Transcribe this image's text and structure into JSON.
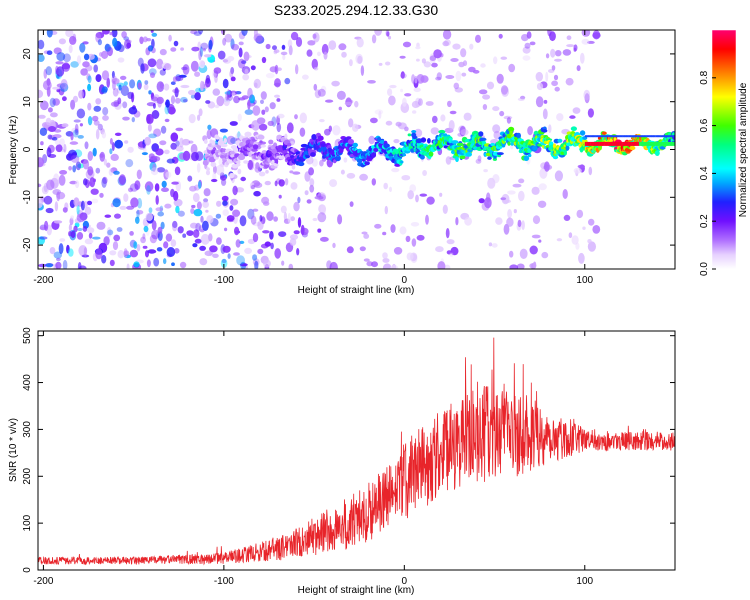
{
  "chart_data": [
    {
      "type": "heatmap",
      "title": "S233.2025.294.12.33.G30",
      "xlabel": "Height of straight line (km)",
      "ylabel": "Frequency (Hz)",
      "xlim": [
        -203,
        150
      ],
      "ylim": [
        -25,
        25
      ],
      "xticks": [
        -200,
        -100,
        0,
        100
      ],
      "xtick_labels": [
        "-200",
        "-100",
        "0",
        "100"
      ],
      "yticks": [
        -20,
        -10,
        0,
        10,
        20
      ],
      "ytick_labels": [
        "-20",
        "-10",
        "0",
        "10",
        "20"
      ],
      "colorbar": {
        "label": "Normalized spectral amplitude",
        "range": [
          0,
          1
        ],
        "ticks": [
          0.0,
          0.2,
          0.4,
          0.6,
          0.8
        ],
        "tick_labels": [
          "0.0",
          "0.2",
          "0.4",
          "0.6",
          "0.8"
        ]
      },
      "ridge": {
        "description_points_x": [
          -100,
          -80,
          -60,
          -40,
          -20,
          0,
          20,
          40,
          60,
          80,
          100,
          120,
          150
        ],
        "center_freq": [
          -1,
          0,
          -1,
          0,
          -0.5,
          0,
          1,
          0.5,
          1.5,
          1,
          1,
          1,
          1.5
        ],
        "amplitude": [
          0.15,
          0.2,
          0.3,
          0.35,
          0.4,
          0.5,
          0.55,
          0.6,
          0.6,
          0.65,
          0.7,
          0.95,
          0.5
        ]
      }
    },
    {
      "type": "line",
      "title": "",
      "xlabel": "Height of straight line (km)",
      "ylabel": "SNR (10 * v/v)",
      "xlim": [
        -203,
        150
      ],
      "ylim": [
        0,
        510
      ],
      "xticks": [
        -200,
        -100,
        0,
        100
      ],
      "xtick_labels": [
        "-200",
        "-100",
        "0",
        "100"
      ],
      "yticks": [
        0,
        100,
        200,
        300,
        400,
        500
      ],
      "ytick_labels": [
        "0",
        "100",
        "200",
        "300",
        "400",
        "500"
      ],
      "series": [
        {
          "name": "SNR",
          "color": "#e8242a",
          "envelope_x": [
            -203,
            -150,
            -100,
            -70,
            -50,
            -30,
            -10,
            0,
            10,
            20,
            30,
            40,
            50,
            60,
            70,
            80,
            90,
            100,
            120,
            150
          ],
          "mean_y": [
            20,
            20,
            25,
            45,
            70,
            100,
            150,
            190,
            220,
            250,
            270,
            285,
            295,
            295,
            290,
            285,
            280,
            278,
            275,
            275
          ],
          "spread_y": [
            8,
            8,
            12,
            25,
            40,
            60,
            70,
            85,
            90,
            95,
            100,
            100,
            110,
            100,
            80,
            60,
            40,
            25,
            20,
            20
          ]
        }
      ]
    }
  ]
}
